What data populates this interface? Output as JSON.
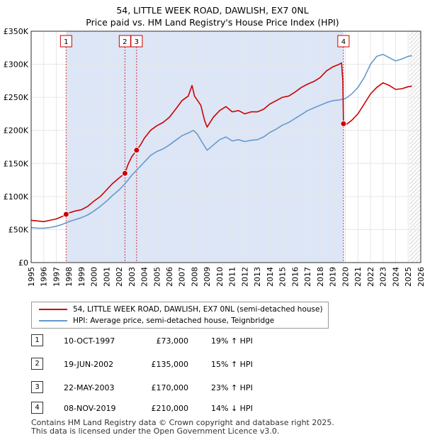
{
  "title_line1": "54, LITTLE WEEK ROAD, DAWLISH, EX7 0NL",
  "title_line2": "Price paid vs. HM Land Registry's House Price Index (HPI)",
  "colors": {
    "property": "#cc0000",
    "hpi": "#6699cc",
    "shade": "#dce6f7",
    "hatch": "#c7c7c7"
  },
  "chart_data": {
    "type": "line",
    "xlim": [
      1995,
      2026
    ],
    "ylim": [
      0,
      350000
    ],
    "x_ticks": [
      "1995",
      "1996",
      "1997",
      "1998",
      "1999",
      "2000",
      "2001",
      "2002",
      "2003",
      "2004",
      "2005",
      "2006",
      "2007",
      "2008",
      "2009",
      "2010",
      "2011",
      "2012",
      "2013",
      "2014",
      "2015",
      "2016",
      "2017",
      "2018",
      "2019",
      "2020",
      "2021",
      "2022",
      "2023",
      "2024",
      "2025",
      "2026"
    ],
    "y_ticks": [
      {
        "value": 0,
        "label": "£0"
      },
      {
        "value": 50000,
        "label": "£50K"
      },
      {
        "value": 100000,
        "label": "£100K"
      },
      {
        "value": 150000,
        "label": "£150K"
      },
      {
        "value": 200000,
        "label": "£200K"
      },
      {
        "value": 250000,
        "label": "£250K"
      },
      {
        "value": 300000,
        "label": "£300K"
      },
      {
        "value": 350000,
        "label": "£350K"
      }
    ],
    "shaded_range": [
      1997.78,
      2019.85
    ],
    "hatched_from": 2025.1,
    "series": [
      {
        "name": "54, LITTLE WEEK ROAD, DAWLISH, EX7 0NL (semi-detached house)",
        "color": "#cc0000",
        "points": [
          [
            1995.0,
            64000
          ],
          [
            1995.5,
            63000
          ],
          [
            1996.0,
            62000
          ],
          [
            1996.5,
            64000
          ],
          [
            1997.0,
            66000
          ],
          [
            1997.5,
            70000
          ],
          [
            1997.78,
            73000
          ],
          [
            1998.0,
            75000
          ],
          [
            1998.5,
            78000
          ],
          [
            1999.0,
            80000
          ],
          [
            1999.5,
            85000
          ],
          [
            2000.0,
            93000
          ],
          [
            2000.5,
            100000
          ],
          [
            2001.0,
            110000
          ],
          [
            2001.5,
            120000
          ],
          [
            2002.0,
            128000
          ],
          [
            2002.46,
            135000
          ],
          [
            2002.7,
            148000
          ],
          [
            2003.0,
            160000
          ],
          [
            2003.39,
            170000
          ],
          [
            2003.7,
            178000
          ],
          [
            2004.0,
            188000
          ],
          [
            2004.5,
            200000
          ],
          [
            2005.0,
            207000
          ],
          [
            2005.5,
            212000
          ],
          [
            2006.0,
            220000
          ],
          [
            2006.5,
            232000
          ],
          [
            2007.0,
            245000
          ],
          [
            2007.5,
            252000
          ],
          [
            2007.8,
            268000
          ],
          [
            2008.0,
            252000
          ],
          [
            2008.5,
            238000
          ],
          [
            2008.8,
            215000
          ],
          [
            2009.0,
            205000
          ],
          [
            2009.5,
            220000
          ],
          [
            2010.0,
            230000
          ],
          [
            2010.5,
            236000
          ],
          [
            2011.0,
            228000
          ],
          [
            2011.5,
            230000
          ],
          [
            2012.0,
            225000
          ],
          [
            2012.5,
            228000
          ],
          [
            2013.0,
            228000
          ],
          [
            2013.5,
            232000
          ],
          [
            2014.0,
            240000
          ],
          [
            2014.5,
            245000
          ],
          [
            2015.0,
            250000
          ],
          [
            2015.5,
            252000
          ],
          [
            2016.0,
            258000
          ],
          [
            2016.5,
            265000
          ],
          [
            2017.0,
            270000
          ],
          [
            2017.5,
            274000
          ],
          [
            2018.0,
            280000
          ],
          [
            2018.5,
            290000
          ],
          [
            2019.0,
            296000
          ],
          [
            2019.5,
            300000
          ],
          [
            2019.7,
            302000
          ],
          [
            2019.8,
            275000
          ],
          [
            2019.85,
            210000
          ],
          [
            2020.0,
            208000
          ],
          [
            2020.5,
            215000
          ],
          [
            2021.0,
            225000
          ],
          [
            2021.5,
            240000
          ],
          [
            2022.0,
            255000
          ],
          [
            2022.5,
            265000
          ],
          [
            2023.0,
            272000
          ],
          [
            2023.5,
            268000
          ],
          [
            2024.0,
            262000
          ],
          [
            2024.5,
            263000
          ],
          [
            2025.0,
            266000
          ],
          [
            2025.3,
            267000
          ]
        ]
      },
      {
        "name": "HPI: Average price, semi-detached house, Teignbridge",
        "color": "#6699cc",
        "points": [
          [
            1995.0,
            53000
          ],
          [
            1995.5,
            52000
          ],
          [
            1996.0,
            52000
          ],
          [
            1996.5,
            53000
          ],
          [
            1997.0,
            55000
          ],
          [
            1997.5,
            58000
          ],
          [
            1998.0,
            62000
          ],
          [
            1998.5,
            65000
          ],
          [
            1999.0,
            68000
          ],
          [
            1999.5,
            72000
          ],
          [
            2000.0,
            78000
          ],
          [
            2000.5,
            85000
          ],
          [
            2001.0,
            93000
          ],
          [
            2001.5,
            102000
          ],
          [
            2002.0,
            110000
          ],
          [
            2002.5,
            120000
          ],
          [
            2003.0,
            132000
          ],
          [
            2003.5,
            142000
          ],
          [
            2004.0,
            152000
          ],
          [
            2004.5,
            162000
          ],
          [
            2005.0,
            168000
          ],
          [
            2005.5,
            172000
          ],
          [
            2006.0,
            178000
          ],
          [
            2006.5,
            185000
          ],
          [
            2007.0,
            192000
          ],
          [
            2007.5,
            196000
          ],
          [
            2007.9,
            200000
          ],
          [
            2008.2,
            195000
          ],
          [
            2008.6,
            182000
          ],
          [
            2009.0,
            170000
          ],
          [
            2009.5,
            178000
          ],
          [
            2010.0,
            186000
          ],
          [
            2010.5,
            190000
          ],
          [
            2011.0,
            184000
          ],
          [
            2011.5,
            186000
          ],
          [
            2012.0,
            183000
          ],
          [
            2012.5,
            185000
          ],
          [
            2013.0,
            186000
          ],
          [
            2013.5,
            190000
          ],
          [
            2014.0,
            197000
          ],
          [
            2014.5,
            202000
          ],
          [
            2015.0,
            208000
          ],
          [
            2015.5,
            212000
          ],
          [
            2016.0,
            218000
          ],
          [
            2016.5,
            224000
          ],
          [
            2017.0,
            230000
          ],
          [
            2017.5,
            234000
          ],
          [
            2018.0,
            238000
          ],
          [
            2018.5,
            242000
          ],
          [
            2019.0,
            245000
          ],
          [
            2019.5,
            246000
          ],
          [
            2020.0,
            248000
          ],
          [
            2020.5,
            255000
          ],
          [
            2021.0,
            265000
          ],
          [
            2021.5,
            280000
          ],
          [
            2022.0,
            300000
          ],
          [
            2022.5,
            312000
          ],
          [
            2023.0,
            315000
          ],
          [
            2023.5,
            310000
          ],
          [
            2024.0,
            305000
          ],
          [
            2024.5,
            308000
          ],
          [
            2025.0,
            312000
          ],
          [
            2025.3,
            313000
          ]
        ]
      }
    ],
    "markers": [
      {
        "label": "1",
        "x": 1997.78,
        "y": 73000
      },
      {
        "label": "2",
        "x": 2002.46,
        "y": 135000
      },
      {
        "label": "3",
        "x": 2003.39,
        "y": 170000
      },
      {
        "label": "4",
        "x": 2019.85,
        "y": 210000
      }
    ]
  },
  "legend": {
    "property": "54, LITTLE WEEK ROAD, DAWLISH, EX7 0NL (semi-detached house)",
    "hpi": "HPI: Average price, semi-detached house, Teignbridge"
  },
  "sales": [
    {
      "num": "1",
      "date": "10-OCT-1997",
      "price": "£73,000",
      "hpi": "19% ↑ HPI"
    },
    {
      "num": "2",
      "date": "19-JUN-2002",
      "price": "£135,000",
      "hpi": "15% ↑ HPI"
    },
    {
      "num": "3",
      "date": "22-MAY-2003",
      "price": "£170,000",
      "hpi": "23% ↑ HPI"
    },
    {
      "num": "4",
      "date": "08-NOV-2019",
      "price": "£210,000",
      "hpi": "14% ↓ HPI"
    }
  ],
  "footer_line1": "Contains HM Land Registry data © Crown copyright and database right 2025.",
  "footer_line2": "This data is licensed under the Open Government Licence v3.0."
}
